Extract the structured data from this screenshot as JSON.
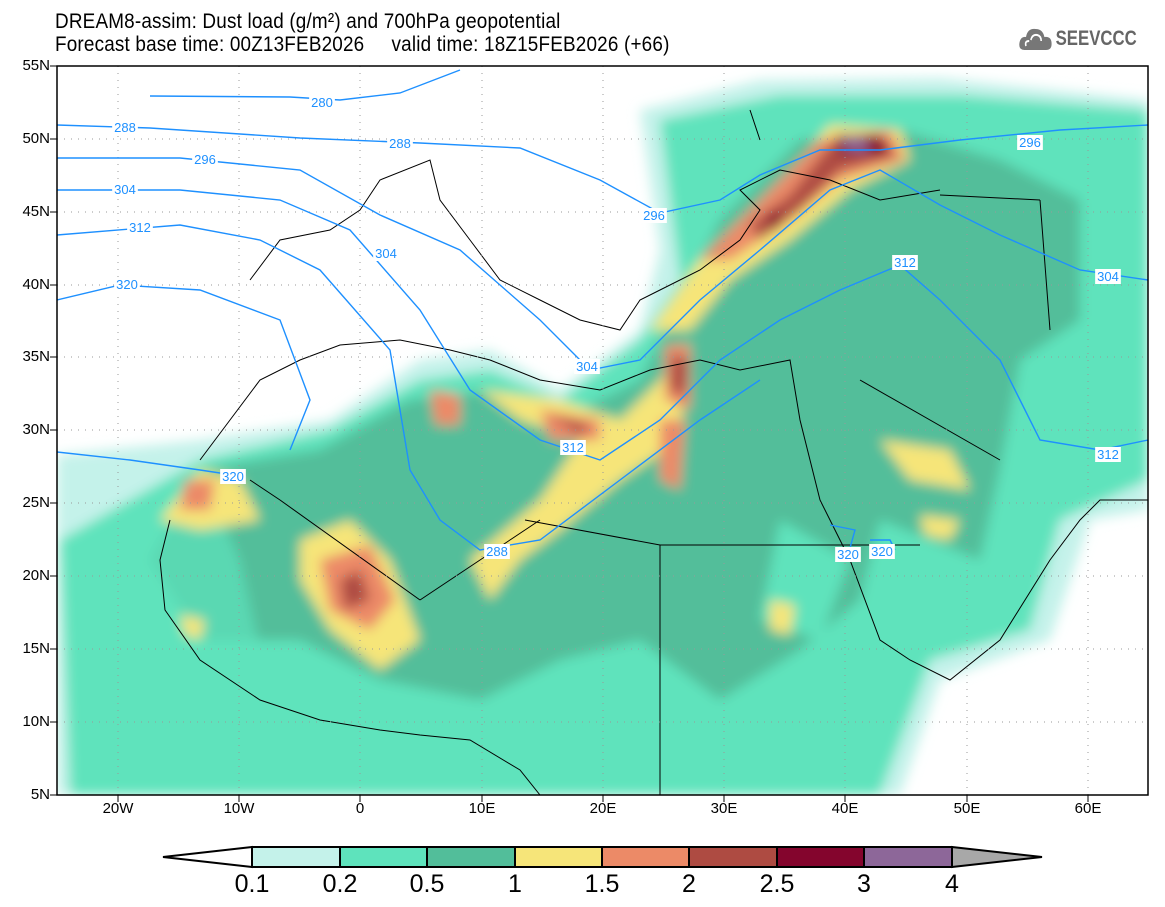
{
  "header": {
    "title": "DREAM8-assim: Dust load (g/m²) and 700hPa geopotential",
    "subtitle": "Forecast base time: 00Z13FEB2026     valid time: 18Z15FEB2026 (+66)",
    "logo_text": "SEEVCCC"
  },
  "map": {
    "lat_labels": [
      "55N",
      "50N",
      "45N",
      "40N",
      "35N",
      "30N",
      "25N",
      "20N",
      "15N",
      "10N",
      "5N"
    ],
    "lon_labels": [
      "20W",
      "10W",
      "0",
      "10E",
      "20E",
      "30E",
      "40E",
      "50E",
      "60E"
    ],
    "contour_labels": [
      "280",
      "288",
      "288",
      "296",
      "304",
      "312",
      "320",
      "304",
      "296",
      "304",
      "312",
      "320",
      "288",
      "296",
      "312",
      "304",
      "312",
      "320",
      "320"
    ],
    "contour_color": "#1e90ff"
  },
  "colorbar": {
    "labels": [
      "0.1",
      "0.2",
      "0.5",
      "1",
      "1.5",
      "2",
      "2.5",
      "3",
      "4"
    ],
    "colors": [
      "#c4f2ea",
      "#5ee3bc",
      "#52be9a",
      "#f6e579",
      "#ec8a67",
      "#ae4b42",
      "#84052d",
      "#8d6799"
    ],
    "over_color": "#a8a8a8",
    "under_color": "#ffffff"
  }
}
